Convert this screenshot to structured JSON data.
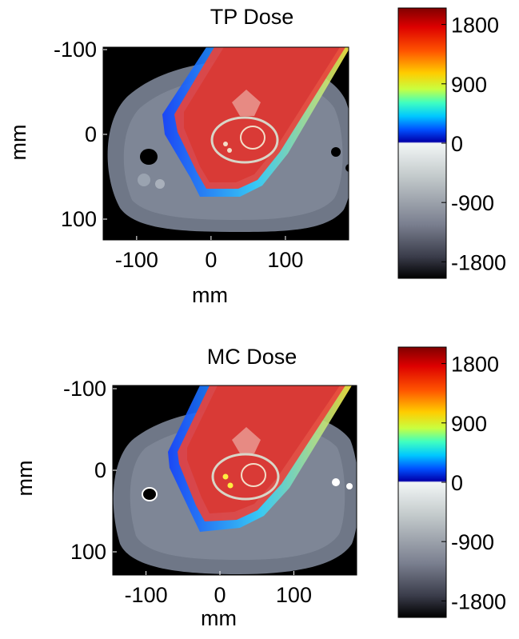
{
  "chart_data": [
    {
      "type": "heatmap",
      "title": "TP Dose",
      "xlabel": "mm",
      "ylabel": "mm",
      "xlim": [
        -145,
        185
      ],
      "ylim": [
        130,
        -130
      ],
      "x_ticks": [
        -100,
        0,
        100
      ],
      "x_tick_labels": [
        "-100",
        "0",
        "100"
      ],
      "y_ticks": [
        -100,
        0,
        100
      ],
      "y_tick_labels": [
        "-100",
        "0",
        "100"
      ],
      "colorbar": {
        "ticks": [
          1800,
          900,
          0,
          -900,
          -1800
        ],
        "tick_labels": [
          "1800",
          "900",
          "0",
          "-900",
          "-1800"
        ],
        "range": [
          -2050,
          2050
        ]
      },
      "grid": false
    },
    {
      "type": "heatmap",
      "title": "MC Dose",
      "xlabel": "mm",
      "ylabel": "mm",
      "xlim": [
        -145,
        185
      ],
      "ylim": [
        130,
        -100
      ],
      "x_ticks": [
        -100,
        0,
        100
      ],
      "x_tick_labels": [
        "-100",
        "0",
        "100"
      ],
      "y_ticks": [
        -100,
        0,
        100
      ],
      "y_tick_labels": [
        "-100",
        "0",
        "100"
      ],
      "colorbar": {
        "ticks": [
          1800,
          900,
          0,
          -900,
          -1800
        ],
        "tick_labels": [
          "1800",
          "900",
          "0",
          "-900",
          "-1800"
        ],
        "range": [
          -2050,
          2050
        ]
      },
      "grid": false
    }
  ]
}
